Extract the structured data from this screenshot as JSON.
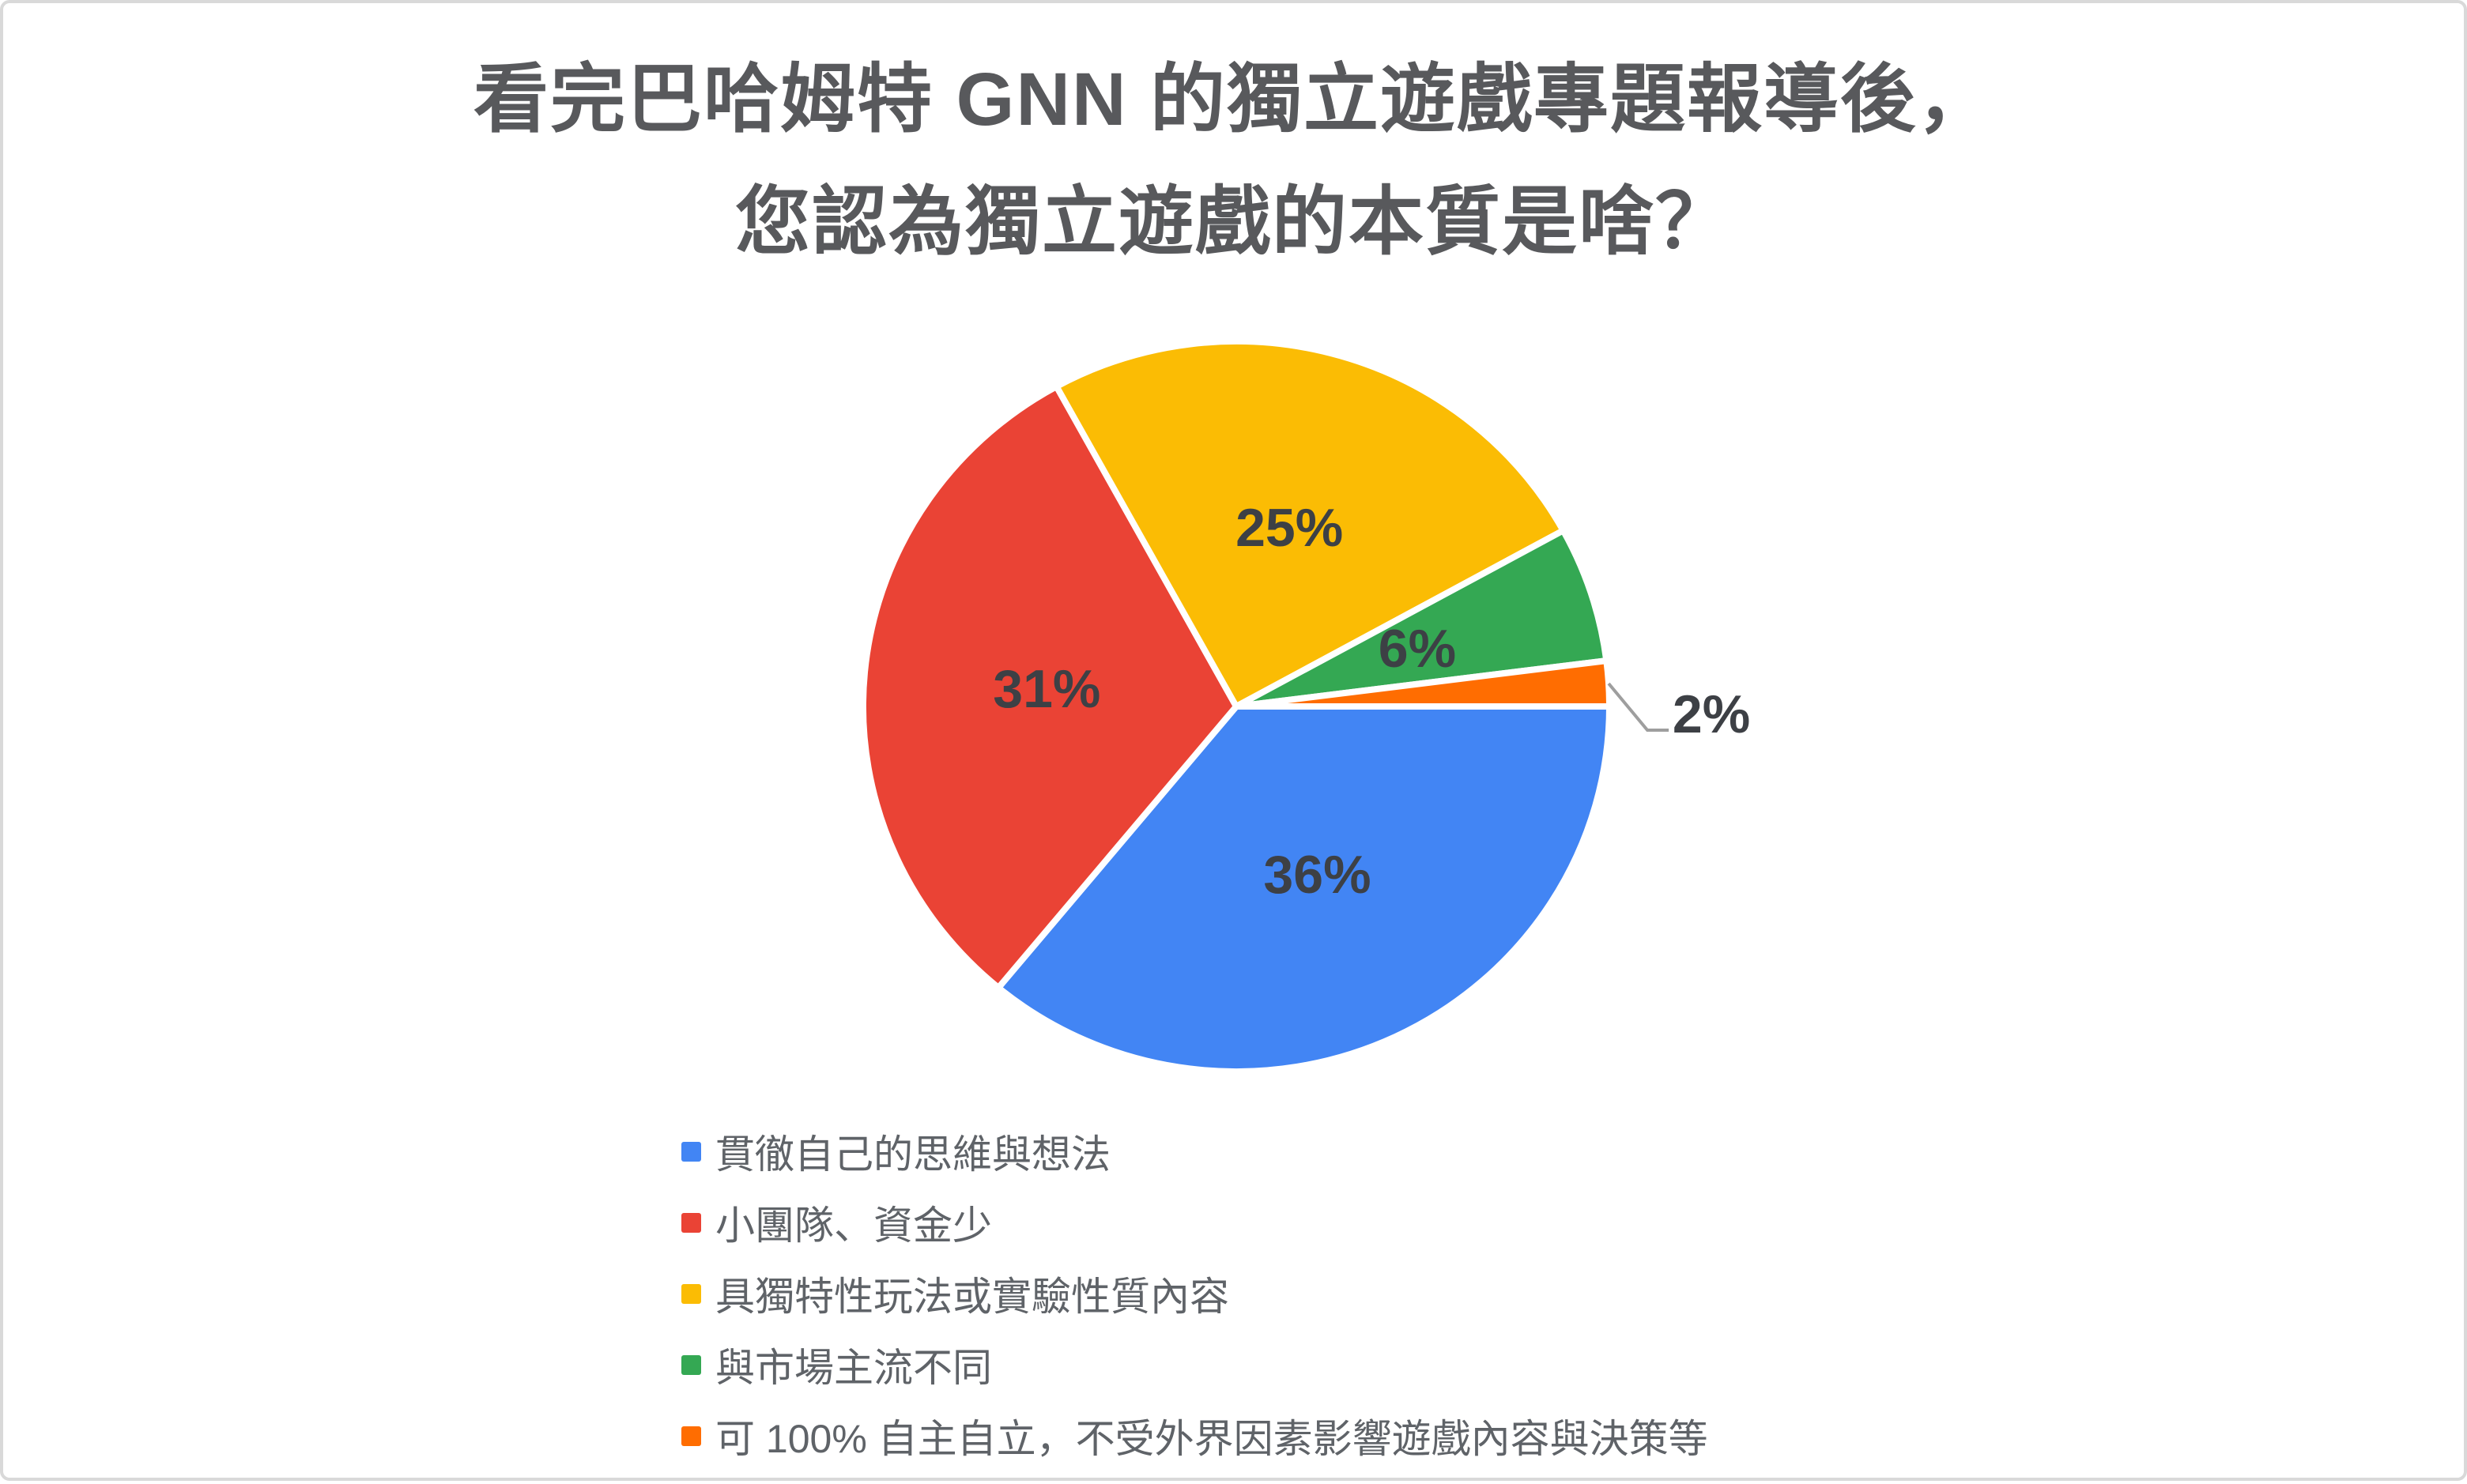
{
  "title": {
    "line1": "看完巴哈姆特 GNN 的獨立遊戲專題報導後，",
    "line2": "您認為獨立遊戲的本質是啥？"
  },
  "chart_data": {
    "type": "pie",
    "title": "看完巴哈姆特 GNN 的獨立遊戲專題報導後，您認為獨立遊戲的本質是啥？",
    "labels_style": "percent",
    "legend_position": "bottom-left",
    "start_angle_clockwise_from_top_deg": 90,
    "direction": "clockwise",
    "slices": [
      {
        "label": "貫徹自己的思維與想法",
        "value_pct": 36,
        "pct_label": "36%",
        "color": "#4285F4",
        "label_placement": "inside"
      },
      {
        "label": "小團隊、資金少",
        "value_pct": 31,
        "pct_label": "31%",
        "color": "#EA4335",
        "label_placement": "inside"
      },
      {
        "label": "具獨特性玩法或實驗性質內容",
        "value_pct": 25,
        "pct_label": "25%",
        "color": "#FBBC04",
        "label_placement": "inside"
      },
      {
        "label": "與市場主流不同",
        "value_pct": 6,
        "pct_label": "6%",
        "color": "#34A853",
        "label_placement": "inside"
      },
      {
        "label": "可 100% 自主自立，不受外界因素影響遊戲內容與決策等",
        "value_pct": 2,
        "pct_label": "2%",
        "color": "#FF6D01",
        "label_placement": "outside"
      }
    ],
    "colors": {
      "label_text": "#3d4045",
      "title_text": "#58595c",
      "legend_text": "#5f6368",
      "leader_line": "#9e9e9e",
      "slice_separator": "#ffffff",
      "card_border": "#d9d9d9",
      "background": "#ffffff"
    }
  }
}
